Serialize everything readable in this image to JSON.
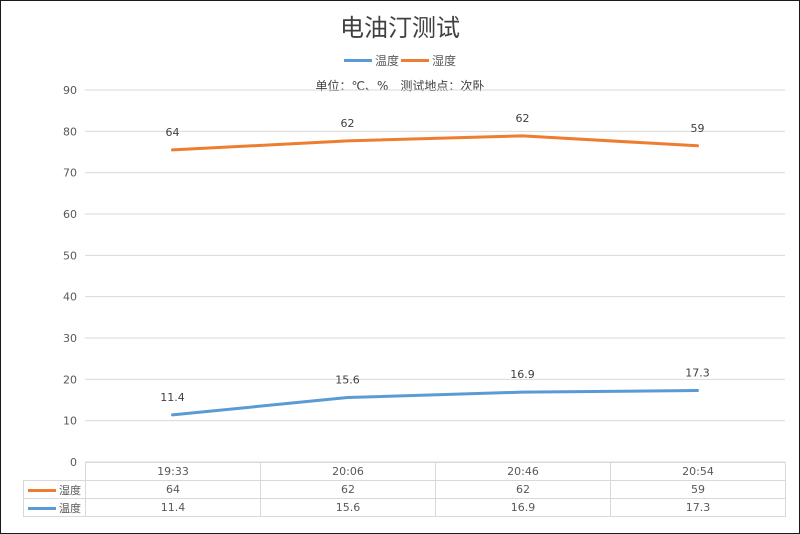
{
  "chart_data": {
    "type": "line",
    "title": "电油汀测试",
    "subtitle": "单位：℃、%　测试地点：次卧",
    "categories": [
      "19:33",
      "20:06",
      "20:46",
      "20:54"
    ],
    "series": [
      {
        "name": "温度",
        "color": "#5B9BD5",
        "values": [
          11.4,
          15.6,
          16.9,
          17.3
        ],
        "data_labels": [
          "11.4",
          "15.6",
          "16.9",
          "17.3"
        ]
      },
      {
        "name": "湿度",
        "color": "#ED7D31",
        "values": [
          64,
          62,
          62,
          59
        ],
        "plotted_values": [
          75.5,
          77.7,
          78.9,
          76.5
        ],
        "data_labels": [
          "64",
          "62",
          "62",
          "59"
        ]
      }
    ],
    "xlabel": "",
    "ylabel": "",
    "ylim": [
      0,
      90
    ],
    "yticks": [
      0,
      10,
      20,
      30,
      40,
      50,
      60,
      70,
      80,
      90
    ],
    "grid": true,
    "legend_position": "top",
    "data_table": true
  },
  "title": "电油汀测试",
  "subtitle": "单位：℃、%　测试地点：次卧",
  "legend": [
    {
      "label": "温度",
      "color": "#5B9BD5"
    },
    {
      "label": "湿度",
      "color": "#ED7D31"
    }
  ],
  "table": {
    "categories": [
      "19:33",
      "20:06",
      "20:46",
      "20:54"
    ],
    "rows": [
      {
        "label": "湿度",
        "color": "#ED7D31",
        "values": [
          "64",
          "62",
          "62",
          "59"
        ]
      },
      {
        "label": "温度",
        "color": "#5B9BD5",
        "values": [
          "11.4",
          "15.6",
          "16.9",
          "17.3"
        ]
      }
    ]
  }
}
